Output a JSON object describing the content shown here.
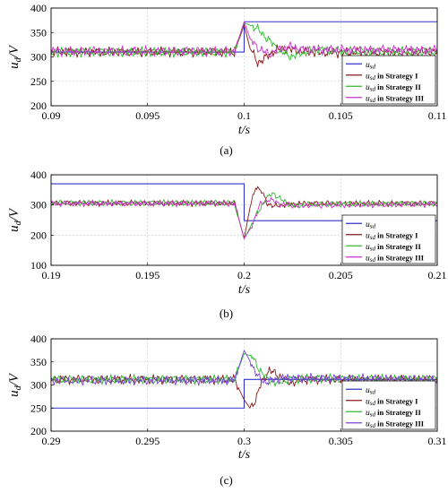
{
  "chart_data": [
    {
      "type": "line",
      "caption": "(a)",
      "xlabel": "t/s",
      "ylabel": "u_d/V",
      "ylabel_main": "u",
      "ylabel_sub": "d",
      "ylabel_unit": "/V",
      "xlim": [
        0.09,
        0.11
      ],
      "ylim": [
        200,
        400
      ],
      "xticks": [
        0.09,
        0.095,
        0.1,
        0.105,
        0.11
      ],
      "xtick_labels": [
        "0.09",
        "0.095",
        "0.1",
        "0.105",
        "0.11"
      ],
      "yticks": [
        200,
        250,
        300,
        350,
        400
      ],
      "ytick_labels": [
        "200",
        "250",
        "300",
        "350",
        "400"
      ],
      "grid": true,
      "legend_position": "bottom-right",
      "series": [
        {
          "name": "u_sd",
          "legend_main": "u",
          "legend_sub": "sd",
          "legend_rest": "",
          "color": "#3333cc",
          "x": [
            0.09,
            0.1,
            0.1,
            0.11
          ],
          "y": [
            310,
            310,
            372,
            372
          ]
        },
        {
          "name": "u_sd in Strategy I",
          "legend_main": "u",
          "legend_sub": "sd",
          "legend_rest": " in Strategy I",
          "color": "#8b1a1a",
          "x": [
            0.09,
            0.0995,
            0.1,
            0.1003,
            0.1007,
            0.1011,
            0.1016,
            0.1022,
            0.103,
            0.104,
            0.11
          ],
          "y": [
            310,
            310,
            365,
            318,
            288,
            298,
            314,
            317,
            311,
            309,
            310
          ]
        },
        {
          "name": "u_sd in Strategy II",
          "legend_main": "u",
          "legend_sub": "sd",
          "legend_rest": " in Strategy II",
          "color": "#33bb33",
          "x": [
            0.09,
            0.0995,
            0.1,
            0.1006,
            0.1012,
            0.1018,
            0.1024,
            0.103,
            0.1038,
            0.1046,
            0.11
          ],
          "y": [
            310,
            310,
            370,
            360,
            338,
            313,
            301,
            308,
            316,
            312,
            310
          ]
        },
        {
          "name": "u_sd in Strategy III",
          "legend_main": "u",
          "legend_sub": "sd",
          "legend_rest": " in Strategy III",
          "color": "#cc33cc",
          "x": [
            0.09,
            0.0995,
            0.1,
            0.1003,
            0.1008,
            0.1013,
            0.1018,
            0.1025,
            0.103,
            0.11
          ],
          "y": [
            312,
            312,
            372,
            338,
            315,
            306,
            316,
            321,
            315,
            314
          ]
        }
      ]
    },
    {
      "type": "line",
      "caption": "(b)",
      "xlabel": "t/s",
      "ylabel": "u_d/V",
      "ylabel_main": "u",
      "ylabel_sub": "d",
      "ylabel_unit": "/V",
      "xlim": [
        0.19,
        0.21
      ],
      "ylim": [
        100,
        400
      ],
      "xticks": [
        0.19,
        0.195,
        0.2,
        0.205,
        0.21
      ],
      "xtick_labels": [
        "0.19",
        "0.195",
        "0.2",
        "0.205",
        "0.21"
      ],
      "yticks": [
        100,
        200,
        300,
        400
      ],
      "ytick_labels": [
        "100",
        "200",
        "300",
        "400"
      ],
      "grid": true,
      "legend_position": "bottom-right",
      "series": [
        {
          "name": "u_sd",
          "legend_main": "u",
          "legend_sub": "sd",
          "legend_rest": "",
          "color": "#3333cc",
          "x": [
            0.19,
            0.2,
            0.2,
            0.21
          ],
          "y": [
            370,
            370,
            248,
            248
          ]
        },
        {
          "name": "u_sd in Strategy I",
          "legend_main": "u",
          "legend_sub": "sd",
          "legend_rest": " in Strategy I",
          "color": "#8b1a1a",
          "x": [
            0.19,
            0.1995,
            0.2,
            0.2003,
            0.2006,
            0.2009,
            0.2012,
            0.2016,
            0.2022,
            0.2032,
            0.21
          ],
          "y": [
            306,
            306,
            190,
            290,
            362,
            345,
            305,
            295,
            302,
            305,
            305
          ]
        },
        {
          "name": "u_sd in Strategy II",
          "legend_main": "u",
          "legend_sub": "sd",
          "legend_rest": " in Strategy II",
          "color": "#33bb33",
          "x": [
            0.19,
            0.1995,
            0.2,
            0.2006,
            0.2011,
            0.2015,
            0.2019,
            0.2025,
            0.2035,
            0.21
          ],
          "y": [
            307,
            307,
            188,
            262,
            318,
            340,
            318,
            297,
            303,
            305
          ]
        },
        {
          "name": "u_sd in Strategy III",
          "legend_main": "u",
          "legend_sub": "sd",
          "legend_rest": " in Strategy III",
          "color": "#cc33cc",
          "x": [
            0.19,
            0.1995,
            0.2,
            0.2004,
            0.2008,
            0.2013,
            0.2018,
            0.2025,
            0.21
          ],
          "y": [
            305,
            305,
            188,
            230,
            300,
            320,
            304,
            298,
            303
          ]
        }
      ]
    },
    {
      "type": "line",
      "caption": "(c)",
      "xlabel": "t/s",
      "ylabel": "u_d/V",
      "ylabel_main": "u",
      "ylabel_sub": "d",
      "ylabel_unit": "/V",
      "xlim": [
        0.29,
        0.31
      ],
      "ylim": [
        200,
        400
      ],
      "xticks": [
        0.29,
        0.295,
        0.3,
        0.305,
        0.31
      ],
      "xtick_labels": [
        "0.29",
        "0.295",
        "0.3",
        "0.305",
        "0.31"
      ],
      "yticks": [
        200,
        250,
        300,
        350,
        400
      ],
      "ytick_labels": [
        "200",
        "250",
        "300",
        "350",
        "400"
      ],
      "grid": true,
      "legend_position": "bottom-right",
      "series": [
        {
          "name": "u_sd",
          "legend_main": "u",
          "legend_sub": "sd",
          "legend_rest": "",
          "color": "#3333cc",
          "x": [
            0.29,
            0.3,
            0.3,
            0.31
          ],
          "y": [
            250,
            250,
            312,
            312
          ]
        },
        {
          "name": "u_sd in Strategy I",
          "legend_main": "u",
          "legend_sub": "sd",
          "legend_rest": " in Strategy I",
          "color": "#8b1a1a",
          "x": [
            0.29,
            0.2995,
            0.3,
            0.3003,
            0.3006,
            0.3009,
            0.3013,
            0.3018,
            0.3024,
            0.3032,
            0.31
          ],
          "y": [
            312,
            312,
            268,
            250,
            268,
            306,
            332,
            320,
            305,
            312,
            312
          ]
        },
        {
          "name": "u_sd in Strategy II",
          "legend_main": "u",
          "legend_sub": "sd",
          "legend_rest": " in Strategy II",
          "color": "#33bb33",
          "x": [
            0.29,
            0.2995,
            0.3,
            0.3004,
            0.3008,
            0.3012,
            0.3017,
            0.3023,
            0.303,
            0.31
          ],
          "y": [
            312,
            312,
            368,
            362,
            333,
            312,
            304,
            312,
            314,
            312
          ]
        },
        {
          "name": "u_sd in Strategy III",
          "legend_main": "u",
          "legend_sub": "sd",
          "legend_rest": " in Strategy III",
          "color": "#7744dd",
          "x": [
            0.29,
            0.2995,
            0.3,
            0.3003,
            0.3007,
            0.3011,
            0.3016,
            0.3022,
            0.31
          ],
          "y": [
            310,
            310,
            375,
            352,
            318,
            306,
            312,
            315,
            312
          ]
        }
      ]
    }
  ]
}
